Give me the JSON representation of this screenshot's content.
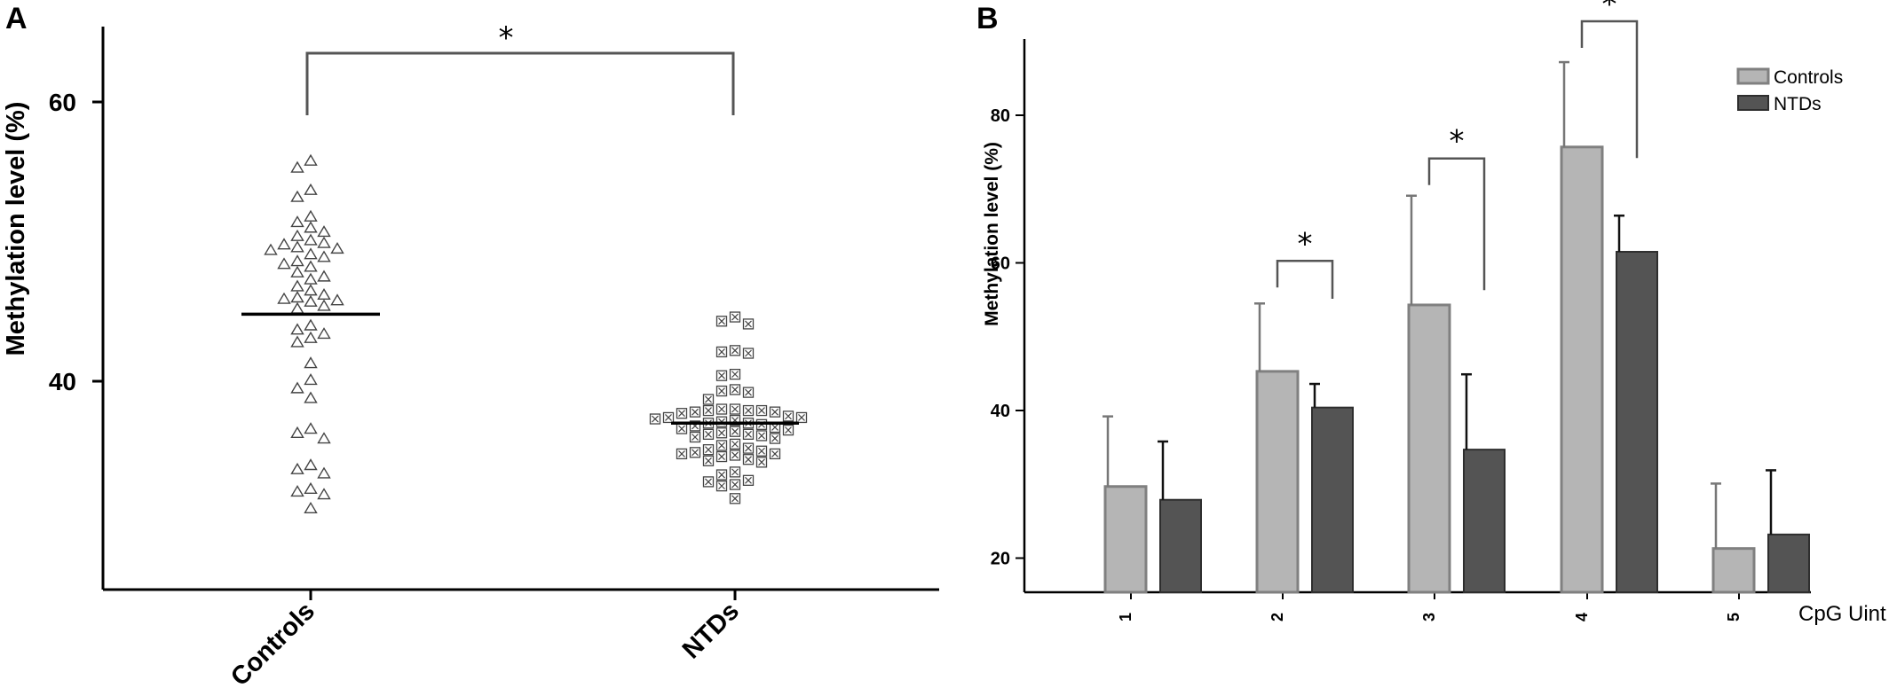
{
  "panels": {
    "a": {
      "label": "A"
    },
    "b": {
      "label": "B"
    }
  },
  "colors": {
    "controls_fill": "#b5b5b5",
    "controls_stroke": "#808080",
    "ntds_fill": "#545454",
    "ntds_stroke": "#2e2e2e",
    "axis": "#000000",
    "bracket": "#555555"
  },
  "chart_data": [
    {
      "type": "scatter",
      "panel": "A",
      "ylabel": "Methylation level (%)",
      "xlabel": "",
      "yticks": [
        40,
        60
      ],
      "ylim": [
        25,
        65
      ],
      "categories": [
        "Controls",
        "NTDs"
      ],
      "series": [
        {
          "name": "Controls",
          "marker": "triangle",
          "mean": 44.8,
          "values": [
            55.8,
            55.3,
            53.7,
            53.2,
            51.8,
            51.4,
            51.0,
            50.7,
            50.4,
            50.1,
            49.9,
            49.8,
            49.6,
            49.5,
            49.4,
            49.1,
            48.9,
            48.6,
            48.4,
            48.2,
            47.8,
            47.5,
            47.3,
            46.8,
            46.5,
            46.2,
            46.0,
            45.9,
            45.8,
            45.7,
            45.4,
            45.2,
            44.0,
            43.7,
            43.4,
            43.1,
            42.8,
            41.3,
            40.1,
            39.5,
            38.8,
            36.6,
            36.3,
            35.9,
            34.0,
            33.7,
            33.4,
            32.3,
            32.1,
            31.9,
            30.9
          ]
        },
        {
          "name": "NTDs",
          "marker": "boxed-x",
          "mean": 37.0,
          "values": [
            44.6,
            44.3,
            44.1,
            42.2,
            42.1,
            42.0,
            40.5,
            40.4,
            39.4,
            39.3,
            39.2,
            38.7,
            38.0,
            38.0,
            37.9,
            37.9,
            37.9,
            37.8,
            37.8,
            37.7,
            37.5,
            37.4,
            37.4,
            37.3,
            37.2,
            37.1,
            37.0,
            37.0,
            36.9,
            36.8,
            36.7,
            36.6,
            36.5,
            36.4,
            36.3,
            36.2,
            36.2,
            36.1,
            36.0,
            35.9,
            35.5,
            35.4,
            35.2,
            35.1,
            35.0,
            34.9,
            34.8,
            34.8,
            34.7,
            34.6,
            34.4,
            34.3,
            34.2,
            33.5,
            33.3,
            32.9,
            32.8,
            32.6,
            32.5,
            31.6
          ]
        }
      ],
      "annotations": [
        {
          "type": "significance",
          "between": [
            "Controls",
            "NTDs"
          ],
          "text": "*"
        }
      ]
    },
    {
      "type": "bar",
      "panel": "B",
      "ylabel": "Methylation level (%)",
      "xlabel": "CpG Uint",
      "categories": [
        "1",
        "2",
        "3",
        "4",
        "5"
      ],
      "yticks": [
        20,
        40,
        60,
        80
      ],
      "ylim": [
        15,
        90
      ],
      "legend_position": "top-right",
      "series": [
        {
          "name": "Controls",
          "values": [
            29.7,
            45.3,
            54.3,
            75.7,
            21.3
          ],
          "errors": [
            9.5,
            9.2,
            14.8,
            11.5,
            8.8
          ]
        },
        {
          "name": "NTDs",
          "values": [
            27.9,
            40.4,
            34.7,
            61.5,
            23.2
          ],
          "errors": [
            7.9,
            3.2,
            10.2,
            4.9,
            8.7
          ]
        }
      ],
      "annotations": [
        {
          "type": "significance",
          "category": "2",
          "text": "*"
        },
        {
          "type": "significance",
          "category": "3",
          "text": "*"
        },
        {
          "type": "significance",
          "category": "4",
          "text": "*"
        }
      ]
    }
  ]
}
